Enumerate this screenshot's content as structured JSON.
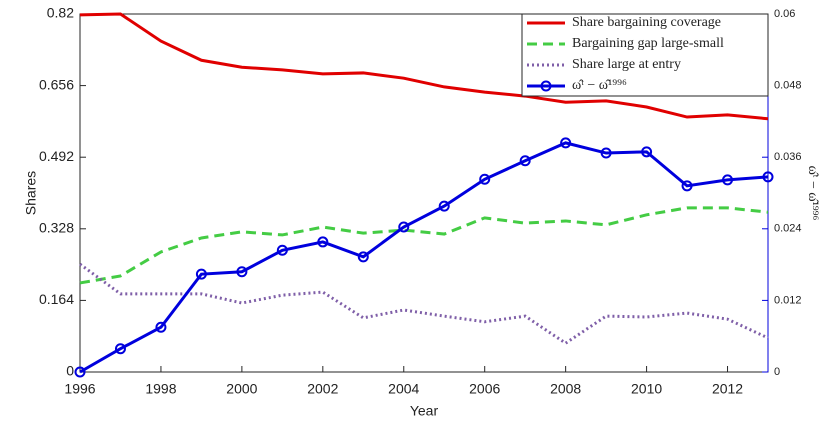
{
  "chart_data": {
    "type": "line",
    "xlabel": "Year",
    "ylabel": "Shares",
    "y2label": "ω̂ᵗ − ω̂¹⁹⁹⁶",
    "x": [
      1996,
      1997,
      1998,
      1999,
      2000,
      2001,
      2002,
      2003,
      2004,
      2005,
      2006,
      2007,
      2008,
      2009,
      2010,
      2011,
      2012,
      2013
    ],
    "xlim": [
      1996,
      2013
    ],
    "xticks": [
      1996,
      1998,
      2000,
      2002,
      2004,
      2006,
      2008,
      2010,
      2012
    ],
    "ylim": [
      0,
      0.82
    ],
    "yticks": [
      0,
      0.164,
      0.328,
      0.492,
      0.656,
      0.82
    ],
    "y2lim": [
      0,
      0.06
    ],
    "y2ticks": [
      0,
      0.012,
      0.024,
      0.036,
      0.048,
      0.06
    ],
    "y2color": "#0000dd",
    "legend": "upper right",
    "series": [
      {
        "name": "Share bargaining coverage",
        "color": "#e00000",
        "dash": "solid",
        "values": [
          0.818,
          0.82,
          0.758,
          0.714,
          0.698,
          0.692,
          0.683,
          0.685,
          0.673,
          0.653,
          0.641,
          0.632,
          0.618,
          0.621,
          0.607,
          0.584,
          0.589,
          0.58
        ]
      },
      {
        "name": "Bargaining gap large-small",
        "color": "#44cc44",
        "dash": "dashed",
        "values": [
          0.204,
          0.22,
          0.275,
          0.307,
          0.321,
          0.314,
          0.332,
          0.318,
          0.325,
          0.316,
          0.353,
          0.341,
          0.346,
          0.337,
          0.36,
          0.376,
          0.376,
          0.366
        ]
      },
      {
        "name": "Share large at entry",
        "color": "#7f5fa8",
        "dash": "dotted",
        "values": [
          0.247,
          0.179,
          0.179,
          0.179,
          0.158,
          0.176,
          0.183,
          0.124,
          0.142,
          0.128,
          0.115,
          0.128,
          0.066,
          0.128,
          0.126,
          0.135,
          0.121,
          0.078
        ]
      },
      {
        "name": "ω̂ᵗ − ω̂¹⁹⁹⁶",
        "color": "#0000dd",
        "dash": "solid",
        "marker": "circle",
        "axis": "y2",
        "values": [
          0,
          0.0039,
          0.0075,
          0.0164,
          0.0168,
          0.0204,
          0.0218,
          0.0193,
          0.0243,
          0.0278,
          0.0323,
          0.0354,
          0.0384,
          0.0367,
          0.0369,
          0.0312,
          0.0322,
          0.0327
        ]
      }
    ]
  }
}
